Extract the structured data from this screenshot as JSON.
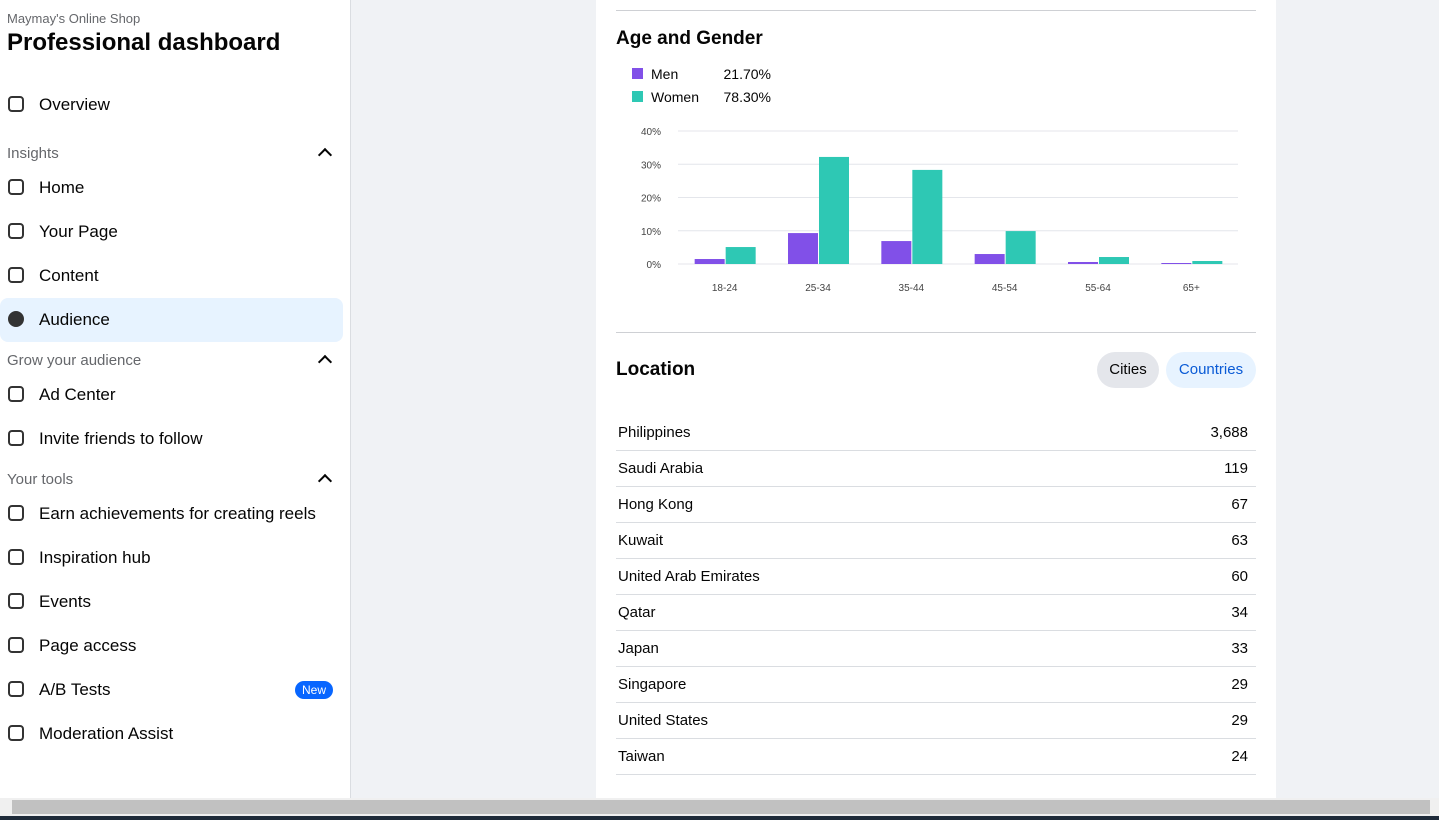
{
  "sidebar": {
    "shop_name": "Maymay's Online Shop",
    "title": "Professional dashboard",
    "overview": "Overview",
    "sections": [
      {
        "title": "Insights",
        "items": [
          "Home",
          "Your Page",
          "Content",
          "Audience"
        ]
      },
      {
        "title": "Grow your audience",
        "items": [
          "Ad Center",
          "Invite friends to follow"
        ]
      },
      {
        "title": "Your tools",
        "items": [
          "Earn achievements for creating reels",
          "Inspiration hub",
          "Events",
          "Page access",
          "A/B Tests",
          "Moderation Assist"
        ]
      }
    ],
    "active": "Audience",
    "badge_item": "A/B Tests",
    "badge": "New"
  },
  "chart_data": {
    "type": "bar",
    "title": "Age and Gender",
    "categories": [
      "18-24",
      "25-34",
      "35-44",
      "45-54",
      "55-64",
      "65+"
    ],
    "series": [
      {
        "name": "Men",
        "share": "21.70%",
        "color": "#8150e8",
        "values": [
          1.5,
          9.3,
          6.9,
          3.0,
          0.6,
          0.3
        ]
      },
      {
        "name": "Women",
        "share": "78.30%",
        "color": "#2ec8b4",
        "values": [
          5.1,
          32.2,
          28.3,
          9.9,
          2.1,
          0.9
        ]
      }
    ],
    "ylim": [
      0,
      40
    ],
    "yticks": [
      {
        "value": 0,
        "label": "0%"
      },
      {
        "value": 10,
        "label": "10%"
      },
      {
        "value": 20,
        "label": "20%"
      },
      {
        "value": 30,
        "label": "30%"
      },
      {
        "value": 40,
        "label": "40%"
      }
    ],
    "grid": true
  },
  "location": {
    "title": "Location",
    "tabs": [
      "Cities",
      "Countries"
    ],
    "active_tab": "Countries",
    "rows": [
      {
        "country": "Philippines",
        "count": "3,688"
      },
      {
        "country": "Saudi Arabia",
        "count": "119"
      },
      {
        "country": "Hong Kong",
        "count": "67"
      },
      {
        "country": "Kuwait",
        "count": "63"
      },
      {
        "country": "United Arab Emirates",
        "count": "60"
      },
      {
        "country": "Qatar",
        "count": "34"
      },
      {
        "country": "Japan",
        "count": "33"
      },
      {
        "country": "Singapore",
        "count": "29"
      },
      {
        "country": "United States",
        "count": "29"
      },
      {
        "country": "Taiwan",
        "count": "24"
      }
    ]
  }
}
